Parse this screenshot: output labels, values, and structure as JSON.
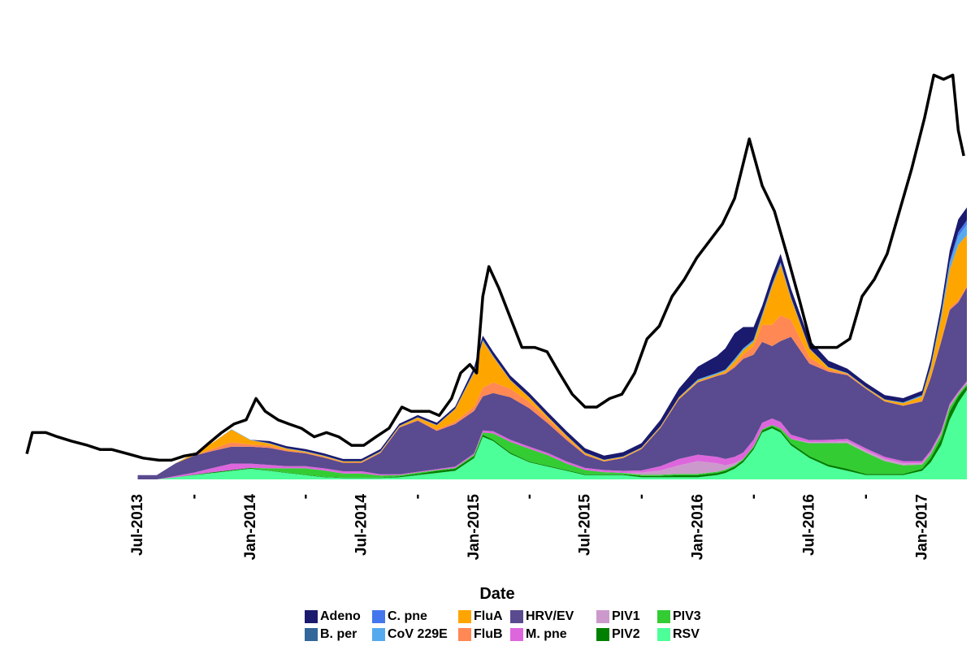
{
  "chart_data": {
    "type": "area",
    "stacked": true,
    "title": "",
    "xlabel": "Date",
    "ylabel": "",
    "x_ticks": [
      "Jul-2013",
      "-",
      "Jan-2014",
      "-",
      "Jul-2014",
      "-",
      "Jan-2015",
      "-",
      "Jul-2015",
      "-",
      "Jan-2016",
      "-",
      "Jul-2016",
      "-",
      "Jan-2017"
    ],
    "x_tick_dates": [
      "2013-07-01",
      "2013-10-01",
      "2014-01-01",
      "2014-04-01",
      "2014-07-01",
      "2014-10-01",
      "2015-01-01",
      "2015-04-01",
      "2015-07-01",
      "2015-10-01",
      "2016-01-01",
      "2016-04-01",
      "2016-07-01",
      "2016-10-01",
      "2017-01-01"
    ],
    "x_range": [
      "2013-01-01",
      "2017-03-15"
    ],
    "y_range": [
      0,
      105
    ],
    "grid": false,
    "legend_position": "bottom",
    "line_series": {
      "color": "#000000",
      "points": [
        [
          "2013-01-01",
          6
        ],
        [
          "2013-01-10",
          11
        ],
        [
          "2013-02-01",
          11
        ],
        [
          "2013-02-20",
          10
        ],
        [
          "2013-03-15",
          9
        ],
        [
          "2013-04-10",
          8
        ],
        [
          "2013-05-01",
          7
        ],
        [
          "2013-05-20",
          7
        ],
        [
          "2013-06-15",
          6
        ],
        [
          "2013-07-10",
          5
        ],
        [
          "2013-08-05",
          4.5
        ],
        [
          "2013-08-25",
          4.5
        ],
        [
          "2013-09-15",
          5.5
        ],
        [
          "2013-10-05",
          6
        ],
        [
          "2013-10-25",
          8.5
        ],
        [
          "2013-11-15",
          11
        ],
        [
          "2013-12-05",
          13
        ],
        [
          "2013-12-25",
          14
        ],
        [
          "2014-01-10",
          19
        ],
        [
          "2014-01-25",
          16
        ],
        [
          "2014-02-15",
          14
        ],
        [
          "2014-03-05",
          13
        ],
        [
          "2014-03-25",
          12
        ],
        [
          "2014-04-15",
          10
        ],
        [
          "2014-05-05",
          11
        ],
        [
          "2014-05-25",
          10
        ],
        [
          "2014-06-15",
          8
        ],
        [
          "2014-07-05",
          8
        ],
        [
          "2014-07-25",
          10
        ],
        [
          "2014-08-15",
          12
        ],
        [
          "2014-09-05",
          17
        ],
        [
          "2014-09-20",
          16
        ],
        [
          "2014-10-05",
          16
        ],
        [
          "2014-10-20",
          16
        ],
        [
          "2014-11-05",
          15
        ],
        [
          "2014-11-25",
          19
        ],
        [
          "2014-12-10",
          25
        ],
        [
          "2014-12-25",
          27
        ],
        [
          "2015-01-05",
          25
        ],
        [
          "2015-01-15",
          43
        ],
        [
          "2015-01-25",
          50
        ],
        [
          "2015-02-10",
          45
        ],
        [
          "2015-03-01",
          38
        ],
        [
          "2015-03-20",
          31
        ],
        [
          "2015-04-10",
          31
        ],
        [
          "2015-04-30",
          30
        ],
        [
          "2015-05-20",
          25
        ],
        [
          "2015-06-10",
          20
        ],
        [
          "2015-07-01",
          17
        ],
        [
          "2015-07-20",
          17
        ],
        [
          "2015-08-10",
          19
        ],
        [
          "2015-08-30",
          20
        ],
        [
          "2015-09-20",
          25
        ],
        [
          "2015-10-10",
          33
        ],
        [
          "2015-10-30",
          36
        ],
        [
          "2015-11-20",
          43
        ],
        [
          "2015-12-10",
          47
        ],
        [
          "2015-12-30",
          52
        ],
        [
          "2016-01-20",
          56
        ],
        [
          "2016-02-10",
          60
        ],
        [
          "2016-03-01",
          66
        ],
        [
          "2016-03-25",
          80
        ],
        [
          "2016-04-15",
          69
        ],
        [
          "2016-05-05",
          63
        ],
        [
          "2016-05-25",
          53
        ],
        [
          "2016-06-15",
          42
        ],
        [
          "2016-07-05",
          31
        ],
        [
          "2016-07-25",
          31
        ],
        [
          "2016-08-15",
          31
        ],
        [
          "2016-09-05",
          33
        ],
        [
          "2016-09-25",
          43
        ],
        [
          "2016-10-15",
          47
        ],
        [
          "2016-11-05",
          53
        ],
        [
          "2016-11-25",
          63
        ],
        [
          "2016-12-15",
          73
        ],
        [
          "2017-01-05",
          85
        ],
        [
          "2017-01-20",
          95
        ],
        [
          "2017-02-05",
          94
        ],
        [
          "2017-02-20",
          95
        ],
        [
          "2017-03-01",
          82
        ],
        [
          "2017-03-10",
          76
        ]
      ]
    },
    "series": [
      {
        "name": "RSV",
        "color": "#4dff99",
        "values": [
          0,
          0,
          0.5,
          1,
          1.5,
          2,
          2.5,
          2,
          1.5,
          1,
          0.5,
          0.3,
          0.3,
          0.3,
          0.5,
          1,
          1.5,
          2,
          5,
          10,
          9,
          6,
          4,
          3,
          2,
          1,
          1,
          1,
          0.5,
          0.5,
          0.5,
          0.5,
          1,
          1.5,
          2.5,
          4,
          7,
          11,
          12,
          11,
          8,
          5,
          3,
          2,
          1,
          1,
          1,
          2,
          4,
          8,
          14,
          18,
          21
        ]
      },
      {
        "name": "PIV2",
        "color": "#008000",
        "values": [
          0,
          0,
          0,
          0.1,
          0.2,
          0.2,
          0.2,
          0.1,
          0.1,
          0.1,
          0.1,
          0.1,
          0.1,
          0.1,
          0.2,
          0.3,
          0.5,
          0.5,
          0.5,
          0.5,
          0.3,
          0.3,
          0.2,
          0.2,
          0.2,
          0.2,
          0.2,
          0.2,
          0.3,
          0.3,
          0.5,
          0.5,
          0.5,
          0.5,
          0.5,
          0.5,
          0.5,
          0.5,
          0.5,
          0.5,
          0.5,
          0.5,
          0.5,
          0.5,
          0.3,
          0.3,
          0.3,
          0.5,
          1,
          1.5,
          2,
          1.5,
          1
        ]
      },
      {
        "name": "PIV3",
        "color": "#33cc33",
        "values": [
          0,
          0,
          0,
          0,
          0,
          0,
          0,
          0.5,
          1,
          1.5,
          1.5,
          1,
          1,
          0.5,
          0.3,
          0.3,
          0.2,
          0.2,
          0.3,
          0.5,
          1.5,
          2.5,
          3,
          2.5,
          1.5,
          1,
          0.5,
          0.3,
          0.3,
          0.3,
          0.3,
          0.3,
          0.3,
          0.3,
          0.3,
          0.3,
          0.3,
          0.3,
          0.3,
          0.5,
          1,
          3,
          5,
          6,
          5,
          3,
          2,
          1,
          1,
          1,
          1,
          0.5,
          0.5
        ]
      },
      {
        "name": "PIV1",
        "color": "#cc99cc",
        "values": [
          0,
          0,
          0,
          0,
          0,
          0,
          0,
          0,
          0,
          0,
          0,
          0,
          0,
          0,
          0,
          0,
          0,
          0,
          0,
          0,
          0,
          0,
          0,
          0,
          0,
          0,
          0,
          0,
          0.5,
          1,
          2,
          3,
          2,
          1,
          0.5,
          0,
          0,
          0,
          0,
          0,
          0,
          0.2,
          0.3,
          0.5,
          0.5,
          0.5,
          0.5,
          0.3,
          0.3,
          0.3,
          0.3,
          0.3,
          0.3
        ]
      },
      {
        "name": "M. pne",
        "color": "#dd66dd",
        "values": [
          0,
          0,
          0.3,
          0.5,
          1,
          1.5,
          1,
          0.8,
          0.5,
          0.5,
          0.5,
          0.5,
          0.5,
          0.3,
          0.2,
          0.2,
          0.2,
          0.3,
          0.3,
          0.5,
          0.5,
          0.5,
          0.5,
          0.5,
          0.5,
          0.5,
          0.5,
          0.5,
          0.5,
          1,
          1.5,
          1.5,
          1.5,
          1.5,
          1.5,
          1.5,
          1.5,
          1.5,
          1.5,
          1.5,
          1,
          0.5,
          0.5,
          0.5,
          0.5,
          0.5,
          0.5,
          0.5,
          0.5,
          0.5,
          0.5,
          0.3,
          0.3
        ]
      },
      {
        "name": "HRV/EV",
        "color": "#5a4a8f",
        "values": [
          1,
          1,
          3,
          4,
          4,
          4,
          4,
          4,
          3.5,
          3,
          2.5,
          2,
          2,
          5,
          11,
          12,
          9,
          10,
          10,
          8,
          9,
          10,
          9,
          7,
          5,
          3,
          2,
          3,
          5,
          9,
          14,
          17,
          19,
          20,
          21,
          22,
          20,
          19,
          17,
          19,
          23,
          18,
          16,
          15,
          14,
          13,
          13,
          14,
          17,
          21,
          22,
          21,
          22
        ]
      },
      {
        "name": "FluB",
        "color": "#ff8855",
        "values": [
          0,
          0,
          0,
          0,
          0.5,
          1,
          0.5,
          0.5,
          0.3,
          0.2,
          0.2,
          0.1,
          0.1,
          0.1,
          0.1,
          0.2,
          0.3,
          0.5,
          1,
          2,
          2.5,
          2,
          1.5,
          1,
          0.5,
          0.2,
          0.1,
          0.1,
          0.1,
          0.1,
          0.1,
          0.1,
          0.1,
          0.2,
          0.5,
          1,
          2,
          4,
          5,
          6,
          4,
          1.5,
          0.5,
          0.2,
          0.1,
          0.1,
          0.1,
          0.2,
          0.3,
          0.5,
          0.5,
          0.5,
          0.3
        ]
      },
      {
        "name": "FluA",
        "color": "#ffa500",
        "values": [
          0,
          0,
          0,
          0.5,
          1.5,
          3,
          1,
          0.5,
          0.3,
          0.2,
          0.2,
          0.2,
          0.2,
          0.2,
          0.2,
          0.5,
          1,
          3,
          8,
          11,
          6,
          2,
          1,
          0.5,
          0.5,
          0.3,
          0.2,
          0.2,
          0.2,
          0.2,
          0.3,
          0.3,
          0.3,
          0.5,
          1,
          1,
          1,
          2,
          9,
          12,
          5,
          2,
          0.5,
          0.2,
          0.2,
          0.3,
          0.5,
          1,
          2,
          5,
          9,
          13,
          12
        ]
      },
      {
        "name": "CoV 229E",
        "color": "#55aaee",
        "values": [
          0,
          0,
          0,
          0,
          0,
          0.1,
          0.1,
          0.1,
          0.1,
          0.1,
          0.1,
          0.1,
          0.1,
          0.1,
          0.1,
          0.1,
          0.1,
          0.1,
          0.3,
          0.3,
          0.2,
          0.1,
          0.1,
          0.1,
          0.1,
          0.1,
          0.1,
          0.1,
          0.1,
          0.1,
          0.1,
          0.3,
          0.3,
          0.3,
          0.5,
          0.5,
          0.5,
          0.5,
          0.5,
          0.5,
          0.3,
          0.1,
          0.1,
          0.1,
          0.1,
          0.1,
          0.2,
          0.3,
          0.5,
          1,
          1.5,
          2,
          2.5
        ]
      },
      {
        "name": "C. pne",
        "color": "#4477ee",
        "values": [
          0,
          0,
          0,
          0,
          0,
          0,
          0,
          0,
          0,
          0,
          0,
          0,
          0,
          0,
          0,
          0,
          0,
          0,
          0,
          0,
          0,
          0,
          0,
          0,
          0,
          0,
          0,
          0,
          0,
          0,
          0,
          0,
          0,
          0,
          0,
          0,
          0,
          0,
          0,
          0,
          0,
          0,
          0,
          0,
          0,
          0,
          0,
          0,
          0,
          0,
          0.5,
          1,
          1
        ]
      },
      {
        "name": "B. per",
        "color": "#336699",
        "values": [
          0,
          0,
          0,
          0,
          0,
          0,
          0,
          0,
          0,
          0,
          0,
          0,
          0,
          0,
          0,
          0,
          0,
          0,
          0,
          0,
          0,
          0,
          0,
          0,
          0,
          0,
          0,
          0,
          0,
          0,
          0,
          0,
          0,
          0,
          0,
          0,
          0,
          0,
          0,
          0,
          0,
          0,
          0,
          0,
          0,
          0,
          0,
          0,
          0,
          0,
          0,
          0,
          0
        ]
      },
      {
        "name": "Adeno",
        "color": "#1a1a6e",
        "values": [
          0,
          0,
          0,
          0,
          0,
          0,
          0,
          0.5,
          0.5,
          0.5,
          0.5,
          0.5,
          0.5,
          0.5,
          0.5,
          0.5,
          0.5,
          0.5,
          1,
          1,
          1,
          1,
          1,
          1,
          1,
          1,
          1,
          1,
          1,
          1.5,
          2,
          3,
          4,
          5,
          6,
          5,
          3,
          2,
          2,
          2,
          2,
          2,
          1.5,
          1,
          1,
          1,
          1,
          1,
          1.5,
          2,
          2.5,
          3,
          3
        ]
      }
    ],
    "area_dates": [
      "2013-07-01",
      "2013-08-01",
      "2013-09-01",
      "2013-10-01",
      "2013-11-01",
      "2013-12-01",
      "2014-01-01",
      "2014-02-01",
      "2014-03-01",
      "2014-04-01",
      "2014-05-01",
      "2014-06-01",
      "2014-07-01",
      "2014-08-01",
      "2014-09-01",
      "2014-10-01",
      "2014-11-01",
      "2014-12-01",
      "2015-01-01",
      "2015-01-15",
      "2015-02-01",
      "2015-03-01",
      "2015-04-01",
      "2015-05-01",
      "2015-06-01",
      "2015-07-01",
      "2015-08-01",
      "2015-09-01",
      "2015-10-01",
      "2015-11-01",
      "2015-12-01",
      "2016-01-01",
      "2016-02-01",
      "2016-02-15",
      "2016-03-01",
      "2016-03-15",
      "2016-04-01",
      "2016-04-15",
      "2016-05-01",
      "2016-05-15",
      "2016-06-01",
      "2016-07-01",
      "2016-08-01",
      "2016-09-01",
      "2016-10-01",
      "2016-11-01",
      "2016-12-01",
      "2017-01-01",
      "2017-01-15",
      "2017-02-01",
      "2017-02-15",
      "2017-03-01",
      "2017-03-15"
    ]
  },
  "legend": {
    "items": [
      {
        "label": "Adeno",
        "color": "#1a1a6e"
      },
      {
        "label": "C. pne",
        "color": "#4477ee"
      },
      {
        "label": "FluA",
        "color": "#ffa500"
      },
      {
        "label": "HRV/EV",
        "color": "#5a4a8f"
      },
      {
        "label": "PIV1",
        "color": "#cc99cc"
      },
      {
        "label": "PIV3",
        "color": "#33cc33"
      },
      {
        "label": "B. per",
        "color": "#336699"
      },
      {
        "label": "CoV 229E",
        "color": "#55aaee"
      },
      {
        "label": "FluB",
        "color": "#ff8855"
      },
      {
        "label": "M. pne",
        "color": "#dd66dd"
      },
      {
        "label": "PIV2",
        "color": "#008000"
      },
      {
        "label": "RSV",
        "color": "#4dff99"
      }
    ]
  }
}
